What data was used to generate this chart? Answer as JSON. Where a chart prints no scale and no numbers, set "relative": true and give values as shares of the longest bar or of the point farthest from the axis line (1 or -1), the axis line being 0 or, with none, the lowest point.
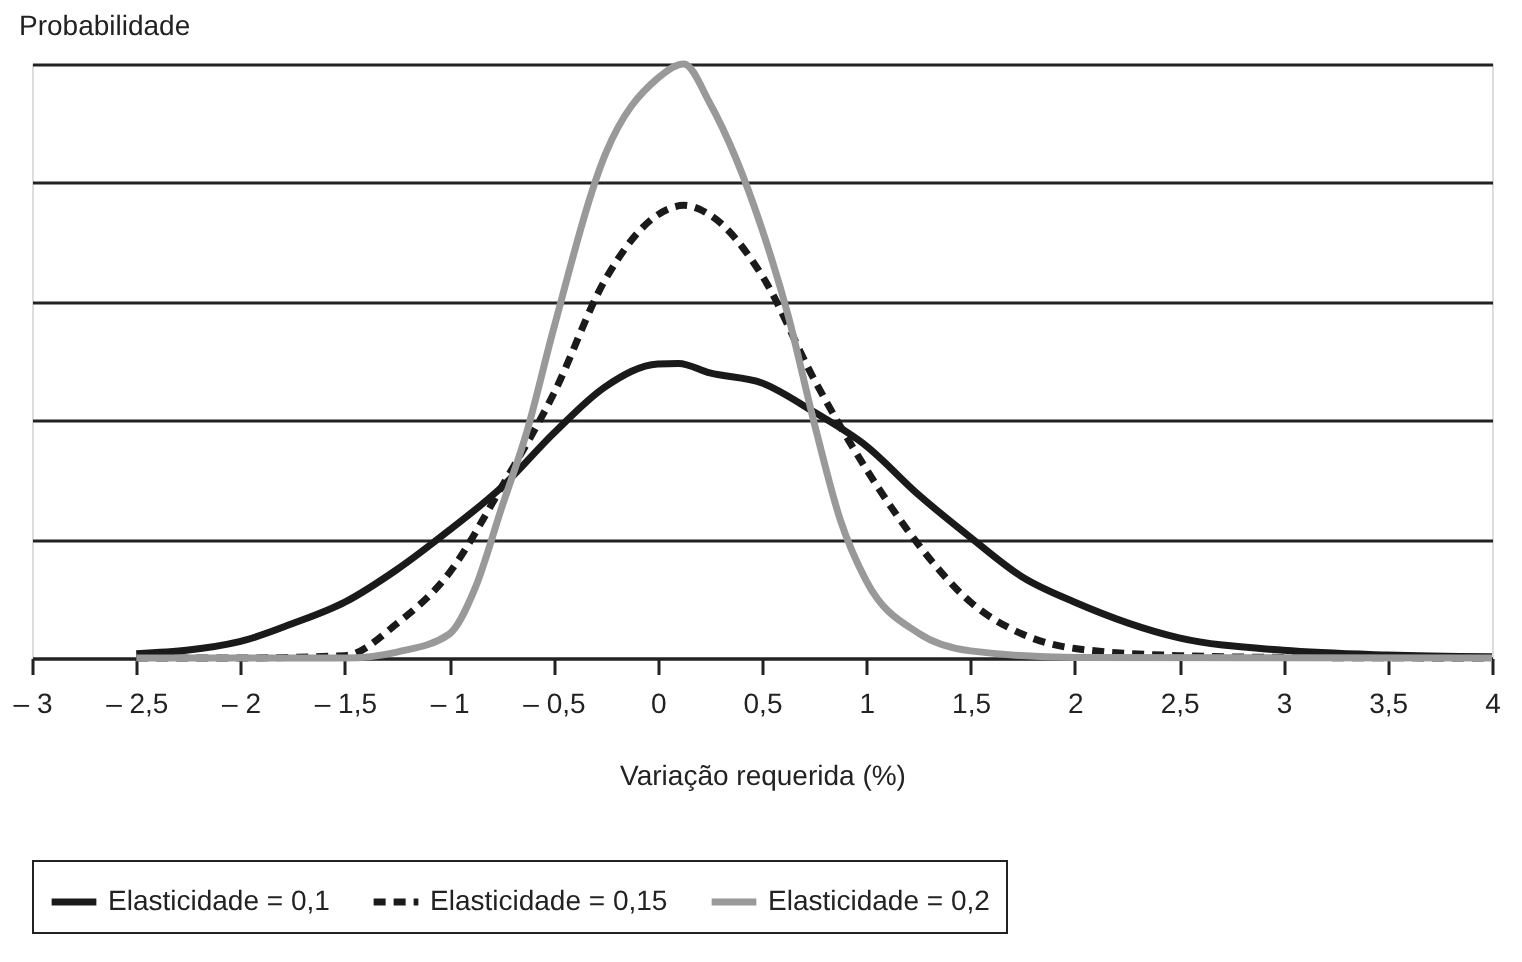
{
  "chart_data": {
    "type": "line",
    "relative": true,
    "ylabel": "Probabilidade",
    "xlabel": "Variação requerida (%)",
    "xlim": [
      -3,
      4
    ],
    "xticks": [
      {
        "value": -3,
        "label": "– 3"
      },
      {
        "value": -2.5,
        "label": "– 2,5"
      },
      {
        "value": -2,
        "label": "– 2"
      },
      {
        "value": -1.5,
        "label": "– 1,5"
      },
      {
        "value": -1,
        "label": "– 1"
      },
      {
        "value": -0.5,
        "label": "– 0,5"
      },
      0,
      {
        "value": 0.5,
        "label": "0,5"
      },
      1,
      {
        "value": 1.5,
        "label": "1,5"
      },
      2,
      {
        "value": 2.5,
        "label": "2,5"
      },
      3,
      {
        "value": 3.5,
        "label": "3,5"
      },
      4
    ],
    "grid": "y",
    "tick_labels": "x",
    "legend": "bottom",
    "marker": "none",
    "series": [
      {
        "name": "Elasticidade = 0,1",
        "color": "#1a1a1a",
        "line_style": "solid",
        "x": [
          -2.5,
          -2,
          -1.75,
          -1.5,
          -1.25,
          -1,
          -0.75,
          -0.5,
          -0.25,
          0,
          0.1,
          0.25,
          0.5,
          0.75,
          1,
          1.25,
          1.5,
          1.75,
          2,
          2.5,
          3,
          3.5,
          4
        ],
        "values": [
          0.007,
          0.028,
          0.058,
          0.094,
          0.149,
          0.215,
          0.287,
          0.378,
          0.457,
          0.495,
          0.496,
          0.48,
          0.463,
          0.414,
          0.357,
          0.275,
          0.203,
          0.136,
          0.094,
          0.034,
          0.013,
          0.005,
          0.002
        ]
      },
      {
        "name": "Elasticidade = 0,15",
        "color": "#1a1a1a",
        "line_style": "dashed",
        "x": [
          -2.5,
          -2,
          -1.5,
          -1.25,
          -1,
          -0.75,
          -0.5,
          -0.25,
          0,
          0.125,
          0.25,
          0.5,
          0.75,
          1,
          1.25,
          1.5,
          1.75,
          2,
          2.5,
          3,
          4
        ],
        "values": [
          0,
          0,
          0.004,
          0.058,
          0.143,
          0.287,
          0.444,
          0.638,
          0.746,
          0.762,
          0.746,
          0.644,
          0.469,
          0.318,
          0.191,
          0.094,
          0.04,
          0.016,
          0.004,
          0.001,
          0
        ]
      },
      {
        "name": "Elasticidade = 0,2",
        "color": "#999999",
        "line_style": "solid",
        "x": [
          -2.5,
          -1.5,
          -1.25,
          -1,
          -0.875,
          -0.75,
          -0.625,
          -0.5,
          -0.25,
          0,
          0.125,
          0.25,
          0.5,
          0.625,
          0.75,
          0.875,
          1,
          1.25,
          1.5,
          2,
          4
        ],
        "values": [
          0,
          0,
          0.01,
          0.04,
          0.118,
          0.251,
          0.384,
          0.553,
          0.849,
          0.976,
          1.0,
          0.934,
          0.722,
          0.577,
          0.396,
          0.233,
          0.13,
          0.042,
          0.012,
          0.001,
          0
        ]
      }
    ]
  }
}
